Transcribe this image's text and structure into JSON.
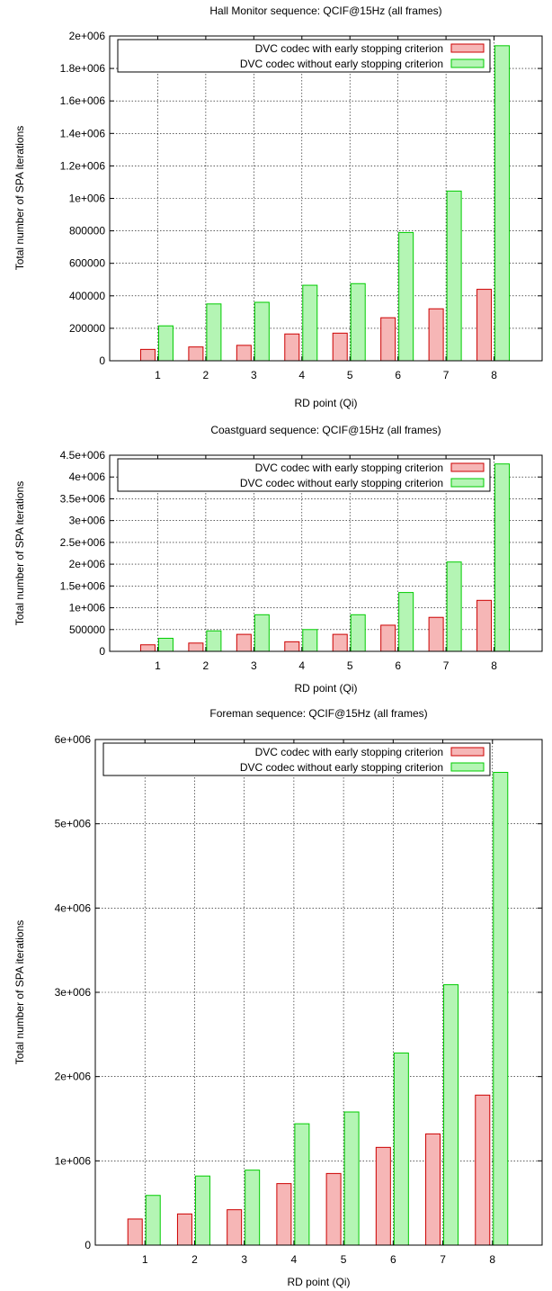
{
  "colors": {
    "with_fill": "#f6b6b6",
    "with_stroke": "#cc0000",
    "without_fill": "#b4f5b4",
    "without_stroke": "#00cc00",
    "axis": "#000000",
    "grid": "#000000"
  },
  "chart_data": [
    {
      "type": "bar",
      "title": "Hall Monitor sequence: QCIF@15Hz (all frames)",
      "xlabel": "RD point (Qi)",
      "ylabel": "Total number of SPA iterations",
      "categories": [
        "1",
        "2",
        "3",
        "4",
        "5",
        "6",
        "7",
        "8"
      ],
      "ylim": [
        0,
        2000000
      ],
      "yticks": [
        0,
        200000,
        400000,
        600000,
        800000,
        1000000,
        1200000,
        1400000,
        1600000,
        1800000,
        2000000
      ],
      "ytick_labels": [
        "0",
        "200000",
        "400000",
        "600000",
        "800000",
        "1e+006",
        "1.2e+006",
        "1.4e+006",
        "1.6e+006",
        "1.8e+006",
        "2e+006"
      ],
      "grid": true,
      "legend_position": "top-right",
      "series": [
        {
          "name": "DVC codec with early stopping criterion",
          "values": [
            70000,
            85000,
            95000,
            165000,
            170000,
            265000,
            320000,
            440000
          ]
        },
        {
          "name": "DVC codec without early stopping criterion",
          "values": [
            215000,
            350000,
            360000,
            465000,
            475000,
            790000,
            1045000,
            1940000
          ]
        }
      ]
    },
    {
      "type": "bar",
      "title": "Coastguard sequence: QCIF@15Hz (all frames)",
      "xlabel": "RD point (Qi)",
      "ylabel": "Total number of SPA iterations",
      "categories": [
        "1",
        "2",
        "3",
        "4",
        "5",
        "6",
        "7",
        "8"
      ],
      "ylim": [
        0,
        4500000
      ],
      "yticks": [
        0,
        500000,
        1000000,
        1500000,
        2000000,
        2500000,
        3000000,
        3500000,
        4000000,
        4500000
      ],
      "ytick_labels": [
        "0",
        "500000",
        "1e+006",
        "1.5e+006",
        "2e+006",
        "2.5e+006",
        "3e+006",
        "3.5e+006",
        "4e+006",
        "4.5e+006"
      ],
      "grid": true,
      "legend_position": "top-right",
      "series": [
        {
          "name": "DVC codec with early stopping criterion",
          "values": [
            150000,
            190000,
            390000,
            220000,
            390000,
            600000,
            780000,
            1170000
          ]
        },
        {
          "name": "DVC codec without early stopping criterion",
          "values": [
            300000,
            470000,
            840000,
            500000,
            840000,
            1350000,
            2050000,
            4300000
          ]
        }
      ]
    },
    {
      "type": "bar",
      "title": "Foreman sequence: QCIF@15Hz (all frames)",
      "xlabel": "RD point (Qi)",
      "ylabel": "Total number of SPA iterations",
      "categories": [
        "1",
        "2",
        "3",
        "4",
        "5",
        "6",
        "7",
        "8"
      ],
      "ylim": [
        0,
        6000000
      ],
      "yticks": [
        0,
        1000000,
        2000000,
        3000000,
        4000000,
        5000000,
        6000000
      ],
      "ytick_labels": [
        "0",
        "1e+006",
        "2e+006",
        "3e+006",
        "4e+006",
        "5e+006",
        "6e+006"
      ],
      "grid": true,
      "legend_position": "top-right",
      "series": [
        {
          "name": "DVC codec with early stopping criterion",
          "values": [
            310000,
            370000,
            420000,
            730000,
            850000,
            1160000,
            1320000,
            1780000
          ]
        },
        {
          "name": "DVC codec without early stopping criterion",
          "values": [
            590000,
            820000,
            890000,
            1440000,
            1580000,
            2280000,
            3090000,
            5610000
          ]
        }
      ]
    }
  ]
}
